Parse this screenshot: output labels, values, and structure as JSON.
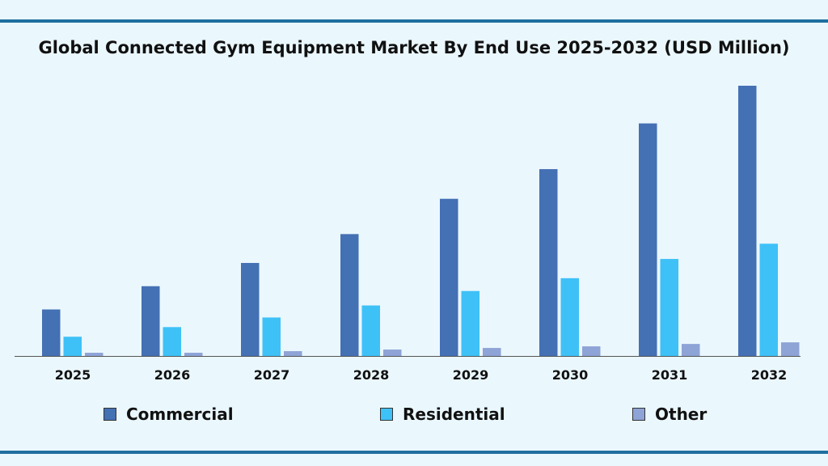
{
  "chart_data": {
    "type": "bar",
    "title": "Global Connected Gym Equipment Market By End Use 2025-2032 (USD Million)",
    "xlabel": "",
    "ylabel": "",
    "ylim": [
      0,
      340
    ],
    "grid": false,
    "legend_position": "bottom",
    "categories": [
      "2025",
      "2026",
      "2027",
      "2028",
      "2029",
      "2030",
      "2031",
      "2032"
    ],
    "series": [
      {
        "name": "Commercial",
        "color": "#4470b4",
        "values": [
          58,
          87,
          116,
          152,
          196,
          233,
          290,
          337
        ]
      },
      {
        "name": "Residential",
        "color": "#3ec1f7",
        "values": [
          24,
          36,
          48,
          63,
          81,
          97,
          121,
          140
        ]
      },
      {
        "name": "Other",
        "color": "#8ea3d6",
        "values": [
          4,
          4,
          6,
          8,
          10,
          12,
          15,
          17
        ]
      }
    ]
  },
  "colors": {
    "background": "#eaf7fd",
    "rule": "#1f6f9f"
  }
}
